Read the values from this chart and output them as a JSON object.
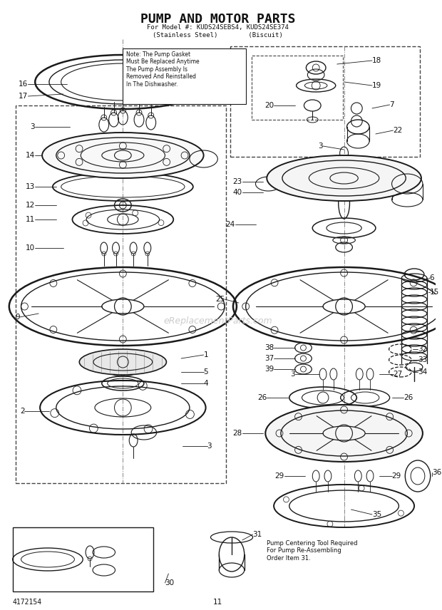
{
  "title": "PUMP AND MOTOR PARTS",
  "subtitle1": "For Model #: KUDS24SEBS4, KUDS24SE374",
  "subtitle2": "(Stainless Steel)        (Biscuit)",
  "note": "Note: The Pump Gasket\nMust Be Replaced Anytime\nThe Pump Assembly Is\nRemoved And Reinstalled\nIn The Dishwasher.",
  "bottom_left_text": "4172154",
  "bottom_center_text": "11",
  "watermark": "eReplacementParts.com",
  "pump_centering_text": "Pump Centering Tool Required\nFor Pump Re-Assembling\nOrder Item 31.",
  "bg_color": "#ffffff",
  "line_color": "#1a1a1a",
  "text_color": "#111111",
  "dashed_color": "#444444"
}
